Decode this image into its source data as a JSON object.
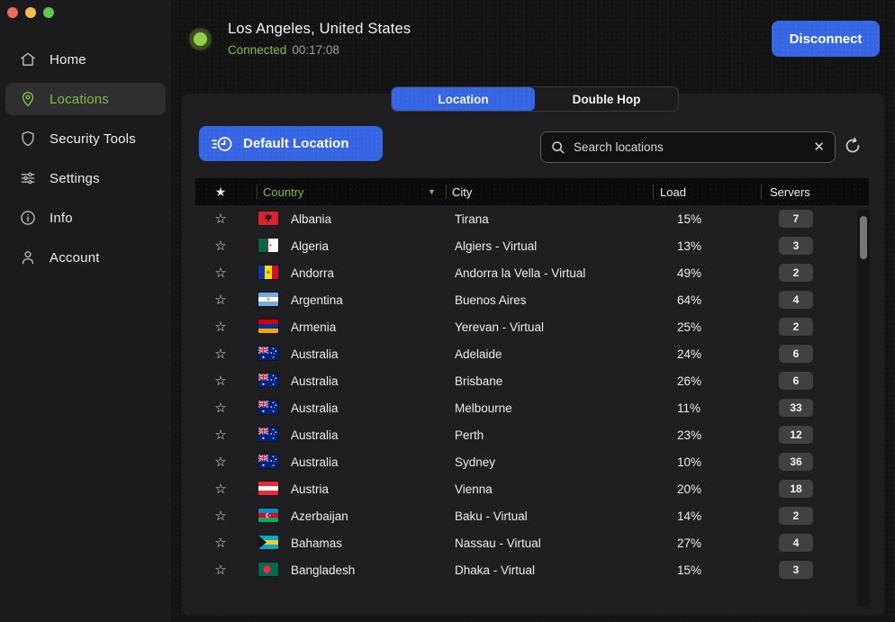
{
  "colors": {
    "accent_blue": "#3565e2",
    "accent_green": "#7dc142",
    "badge_bg": "#414144",
    "panel_bg": "#1f1f21",
    "sidebar_bg": "#1b1b1d"
  },
  "sidebar": {
    "items": [
      {
        "label": "Home",
        "icon": "home-icon",
        "active": false
      },
      {
        "label": "Locations",
        "icon": "map-pin-icon",
        "active": true
      },
      {
        "label": "Security Tools",
        "icon": "shield-icon",
        "active": false
      },
      {
        "label": "Settings",
        "icon": "sliders-icon",
        "active": false
      },
      {
        "label": "Info",
        "icon": "info-icon",
        "active": false
      },
      {
        "label": "Account",
        "icon": "person-icon",
        "active": false
      }
    ]
  },
  "header": {
    "location_title": "Los Angeles, United States",
    "status": "Connected",
    "timer": "00:17:08",
    "disconnect_label": "Disconnect"
  },
  "tabs": [
    {
      "label": "Location",
      "active": true
    },
    {
      "label": "Double Hop",
      "active": false
    }
  ],
  "toolbar": {
    "default_location_label": "Default Location",
    "search_placeholder": "Search locations",
    "clear_glyph": "✕"
  },
  "table": {
    "header_star": "★",
    "row_star": "☆",
    "sort_arrow": "▼",
    "columns": {
      "country": "Country",
      "city": "City",
      "load": "Load",
      "servers": "Servers"
    },
    "rows": [
      {
        "flag": "al",
        "country": "Albania",
        "city": "Tirana",
        "load": "15%",
        "servers": "7"
      },
      {
        "flag": "dz",
        "country": "Algeria",
        "city": "Algiers - Virtual",
        "load": "13%",
        "servers": "3"
      },
      {
        "flag": "ad",
        "country": "Andorra",
        "city": "Andorra la Vella - Virtual",
        "load": "49%",
        "servers": "2"
      },
      {
        "flag": "ar",
        "country": "Argentina",
        "city": "Buenos Aires",
        "load": "64%",
        "servers": "4"
      },
      {
        "flag": "am",
        "country": "Armenia",
        "city": "Yerevan - Virtual",
        "load": "25%",
        "servers": "2"
      },
      {
        "flag": "au",
        "country": "Australia",
        "city": "Adelaide",
        "load": "24%",
        "servers": "6"
      },
      {
        "flag": "au",
        "country": "Australia",
        "city": "Brisbane",
        "load": "26%",
        "servers": "6"
      },
      {
        "flag": "au",
        "country": "Australia",
        "city": "Melbourne",
        "load": "11%",
        "servers": "33"
      },
      {
        "flag": "au",
        "country": "Australia",
        "city": "Perth",
        "load": "23%",
        "servers": "12"
      },
      {
        "flag": "au",
        "country": "Australia",
        "city": "Sydney",
        "load": "10%",
        "servers": "36"
      },
      {
        "flag": "at",
        "country": "Austria",
        "city": "Vienna",
        "load": "20%",
        "servers": "18"
      },
      {
        "flag": "az",
        "country": "Azerbaijan",
        "city": "Baku - Virtual",
        "load": "14%",
        "servers": "2"
      },
      {
        "flag": "bs",
        "country": "Bahamas",
        "city": "Nassau - Virtual",
        "load": "27%",
        "servers": "4"
      },
      {
        "flag": "bd",
        "country": "Bangladesh",
        "city": "Dhaka - Virtual",
        "load": "15%",
        "servers": "3"
      }
    ]
  }
}
